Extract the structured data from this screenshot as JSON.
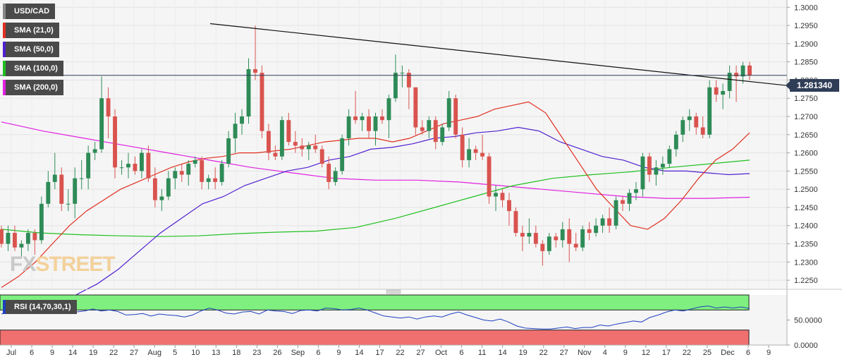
{
  "legend": [
    {
      "label": "USD/CAD",
      "color": "#888888"
    },
    {
      "label": "SMA (21,0)",
      "color": "#e03020"
    },
    {
      "label": "SMA (50,0)",
      "color": "#5020d0"
    },
    {
      "label": "SMA (100,0)",
      "color": "#20c020"
    },
    {
      "label": "SMA (200,0)",
      "color": "#e020e0"
    }
  ],
  "current_price": "1.281340",
  "watermark": {
    "fx": "FX",
    "street": "STREET"
  },
  "rsi_label": "RSI (14,70,30,1)",
  "chart_data": [
    {
      "type": "candlestick",
      "title": "USD/CAD",
      "ylim": [
        1.2225,
        1.302
      ],
      "yticks": [
        "1.3000",
        "1.2950",
        "1.2900",
        "1.2850",
        "1.2800",
        "1.2750",
        "1.2700",
        "1.2650",
        "1.2600",
        "1.2550",
        "1.2500",
        "1.2450",
        "1.2400",
        "1.2350",
        "1.2300",
        "1.2250"
      ],
      "xticks": [
        "Jul",
        "6",
        "9",
        "14",
        "19",
        "22",
        "27",
        "Aug",
        "5",
        "10",
        "13",
        "18",
        "23",
        "26",
        "Sep",
        "6",
        "9",
        "14",
        "17",
        "22",
        "27",
        "Oct",
        "6",
        "11",
        "14",
        "19",
        "22",
        "27",
        "Nov",
        "4",
        "9",
        "12",
        "17",
        "22",
        "25",
        "Dec",
        "6",
        "9"
      ],
      "up_color": "#2e8b57",
      "down_color": "#d9534f",
      "candles": [
        [
          1.239,
          1.24,
          1.234,
          1.235
        ],
        [
          1.235,
          1.24,
          1.233,
          1.238
        ],
        [
          1.238,
          1.24,
          1.233,
          1.234
        ],
        [
          1.234,
          1.236,
          1.231,
          1.235
        ],
        [
          1.235,
          1.239,
          1.233,
          1.238
        ],
        [
          1.238,
          1.239,
          1.232,
          1.236
        ],
        [
          1.236,
          1.248,
          1.235,
          1.246
        ],
        [
          1.246,
          1.255,
          1.245,
          1.252
        ],
        [
          1.252,
          1.26,
          1.25,
          1.254
        ],
        [
          1.254,
          1.256,
          1.244,
          1.246
        ],
        [
          1.246,
          1.25,
          1.244,
          1.246
        ],
        [
          1.246,
          1.256,
          1.242,
          1.253
        ],
        [
          1.253,
          1.258,
          1.25,
          1.253
        ],
        [
          1.253,
          1.262,
          1.25,
          1.26
        ],
        [
          1.26,
          1.263,
          1.258,
          1.261
        ],
        [
          1.261,
          1.281,
          1.26,
          1.275
        ],
        [
          1.275,
          1.278,
          1.264,
          1.27
        ],
        [
          1.27,
          1.272,
          1.253,
          1.256
        ],
        [
          1.256,
          1.258,
          1.254,
          1.256
        ],
        [
          1.256,
          1.26,
          1.253,
          1.257
        ],
        [
          1.257,
          1.259,
          1.254,
          1.255
        ],
        [
          1.255,
          1.261,
          1.253,
          1.26
        ],
        [
          1.26,
          1.262,
          1.252,
          1.253
        ],
        [
          1.253,
          1.256,
          1.245,
          1.247
        ],
        [
          1.247,
          1.25,
          1.244,
          1.248
        ],
        [
          1.248,
          1.255,
          1.247,
          1.253
        ],
        [
          1.253,
          1.256,
          1.25,
          1.255
        ],
        [
          1.255,
          1.257,
          1.252,
          1.254
        ],
        [
          1.254,
          1.258,
          1.251,
          1.257
        ],
        [
          1.257,
          1.259,
          1.256,
          1.258
        ],
        [
          1.258,
          1.259,
          1.25,
          1.252
        ],
        [
          1.252,
          1.254,
          1.25,
          1.253
        ],
        [
          1.253,
          1.256,
          1.25,
          1.252
        ],
        [
          1.252,
          1.258,
          1.251,
          1.257
        ],
        [
          1.257,
          1.266,
          1.256,
          1.264
        ],
        [
          1.264,
          1.271,
          1.26,
          1.268
        ],
        [
          1.268,
          1.272,
          1.265,
          1.27
        ],
        [
          1.27,
          1.286,
          1.268,
          1.283
        ],
        [
          1.283,
          1.295,
          1.28,
          1.282
        ],
        [
          1.282,
          1.284,
          1.264,
          1.266
        ],
        [
          1.266,
          1.268,
          1.258,
          1.26
        ],
        [
          1.26,
          1.262,
          1.258,
          1.259
        ],
        [
          1.259,
          1.27,
          1.258,
          1.269
        ],
        [
          1.269,
          1.271,
          1.262,
          1.263
        ],
        [
          1.263,
          1.266,
          1.26,
          1.262
        ],
        [
          1.262,
          1.264,
          1.259,
          1.261
        ],
        [
          1.261,
          1.263,
          1.258,
          1.262
        ],
        [
          1.262,
          1.265,
          1.26,
          1.261
        ],
        [
          1.261,
          1.262,
          1.256,
          1.257
        ],
        [
          1.257,
          1.259,
          1.25,
          1.252
        ],
        [
          1.252,
          1.256,
          1.251,
          1.255
        ],
        [
          1.255,
          1.265,
          1.254,
          1.264
        ],
        [
          1.264,
          1.272,
          1.262,
          1.27
        ],
        [
          1.27,
          1.277,
          1.268,
          1.269
        ],
        [
          1.269,
          1.271,
          1.266,
          1.27
        ],
        [
          1.27,
          1.272,
          1.264,
          1.266
        ],
        [
          1.266,
          1.271,
          1.262,
          1.27
        ],
        [
          1.27,
          1.272,
          1.268,
          1.269
        ],
        [
          1.269,
          1.276,
          1.264,
          1.275
        ],
        [
          1.275,
          1.287,
          1.274,
          1.282
        ],
        [
          1.282,
          1.284,
          1.278,
          1.282
        ],
        [
          1.282,
          1.283,
          1.272,
          1.278
        ],
        [
          1.278,
          1.278,
          1.265,
          1.267
        ],
        [
          1.267,
          1.269,
          1.265,
          1.266
        ],
        [
          1.266,
          1.27,
          1.264,
          1.269
        ],
        [
          1.269,
          1.27,
          1.261,
          1.263
        ],
        [
          1.263,
          1.268,
          1.262,
          1.267
        ],
        [
          1.267,
          1.277,
          1.266,
          1.275
        ],
        [
          1.275,
          1.276,
          1.264,
          1.265
        ],
        [
          1.265,
          1.267,
          1.256,
          1.258
        ],
        [
          1.258,
          1.264,
          1.256,
          1.261
        ],
        [
          1.261,
          1.262,
          1.258,
          1.26
        ],
        [
          1.26,
          1.265,
          1.258,
          1.259
        ],
        [
          1.259,
          1.26,
          1.246,
          1.248
        ],
        [
          1.248,
          1.251,
          1.244,
          1.249
        ],
        [
          1.249,
          1.25,
          1.245,
          1.247
        ],
        [
          1.247,
          1.249,
          1.24,
          1.244
        ],
        [
          1.244,
          1.245,
          1.237,
          1.238
        ],
        [
          1.238,
          1.24,
          1.233,
          1.237
        ],
        [
          1.237,
          1.242,
          1.235,
          1.238
        ],
        [
          1.238,
          1.24,
          1.234,
          1.235
        ],
        [
          1.235,
          1.236,
          1.229,
          1.233
        ],
        [
          1.233,
          1.238,
          1.232,
          1.237
        ],
        [
          1.237,
          1.238,
          1.234,
          1.236
        ],
        [
          1.236,
          1.241,
          1.234,
          1.239
        ],
        [
          1.239,
          1.242,
          1.23,
          1.235
        ],
        [
          1.235,
          1.238,
          1.233,
          1.234
        ],
        [
          1.234,
          1.24,
          1.233,
          1.239
        ],
        [
          1.239,
          1.241,
          1.236,
          1.238
        ],
        [
          1.238,
          1.242,
          1.237,
          1.24
        ],
        [
          1.24,
          1.243,
          1.238,
          1.242
        ],
        [
          1.242,
          1.245,
          1.238,
          1.24
        ],
        [
          1.24,
          1.248,
          1.239,
          1.247
        ],
        [
          1.247,
          1.248,
          1.244,
          1.246
        ],
        [
          1.246,
          1.25,
          1.244,
          1.249
        ],
        [
          1.249,
          1.252,
          1.247,
          1.25
        ],
        [
          1.25,
          1.26,
          1.248,
          1.259
        ],
        [
          1.259,
          1.26,
          1.252,
          1.254
        ],
        [
          1.254,
          1.258,
          1.251,
          1.256
        ],
        [
          1.256,
          1.259,
          1.254,
          1.257
        ],
        [
          1.257,
          1.262,
          1.256,
          1.261
        ],
        [
          1.261,
          1.266,
          1.259,
          1.265
        ],
        [
          1.265,
          1.27,
          1.263,
          1.269
        ],
        [
          1.269,
          1.272,
          1.266,
          1.27
        ],
        [
          1.27,
          1.271,
          1.265,
          1.267
        ],
        [
          1.267,
          1.27,
          1.264,
          1.265
        ],
        [
          1.265,
          1.28,
          1.264,
          1.278
        ],
        [
          1.278,
          1.28,
          1.274,
          1.276
        ],
        [
          1.276,
          1.279,
          1.272,
          1.277
        ],
        [
          1.277,
          1.284,
          1.275,
          1.282
        ],
        [
          1.282,
          1.284,
          1.274,
          1.281
        ],
        [
          1.281,
          1.285,
          1.279,
          1.284
        ],
        [
          1.284,
          1.285,
          1.28,
          1.2813
        ]
      ],
      "sma_21": [
        1.223,
        1.226,
        1.23,
        1.235,
        1.24,
        1.244,
        1.247,
        1.25,
        1.252,
        1.254,
        1.256,
        1.2575,
        1.2585,
        1.259,
        1.26,
        1.26,
        1.2605,
        1.261,
        1.262,
        1.263,
        1.2635,
        1.264,
        1.264,
        1.263,
        1.264,
        1.266,
        1.268,
        1.269,
        1.27,
        1.272,
        1.273,
        1.274,
        1.271,
        1.264,
        1.257,
        1.25,
        1.245,
        1.24,
        1.239,
        1.242,
        1.247,
        1.253,
        1.258,
        1.261,
        1.2655
      ],
      "sma_50": [
        1.221,
        1.224,
        1.228,
        1.233,
        1.238,
        1.242,
        1.246,
        1.248,
        1.251,
        1.253,
        1.255,
        1.256,
        1.258,
        1.259,
        1.261,
        1.2615,
        1.2625,
        1.264,
        1.2645,
        1.2655,
        1.266,
        1.267,
        1.266,
        1.263,
        1.261,
        1.259,
        1.258,
        1.256,
        1.255,
        1.255,
        1.2545,
        1.254,
        1.2543
      ],
      "sma_100": [
        1.239,
        1.238,
        1.2375,
        1.2372,
        1.237,
        1.2372,
        1.2378,
        1.2382,
        1.2385,
        1.2395,
        1.242,
        1.245,
        1.248,
        1.251,
        1.253,
        1.254,
        1.2548,
        1.256,
        1.257,
        1.258
      ],
      "sma_200": [
        1.2685,
        1.266,
        1.264,
        1.262,
        1.26,
        1.258,
        1.256,
        1.2545,
        1.253,
        1.2525,
        1.2525,
        1.252,
        1.251,
        1.25,
        1.249,
        1.248,
        1.2475,
        1.2475,
        1.2478
      ],
      "trendline": {
        "start": 1.2955,
        "end": 1.2785
      }
    },
    {
      "type": "line",
      "title": "RSI (14,70,30,1)",
      "ylim": [
        0,
        100
      ],
      "yticks": [
        "50.0000",
        "0.0000"
      ],
      "overbought": 70,
      "oversold": 30,
      "line_color": "#1f3fbf",
      "values": [
        62,
        68,
        72,
        70,
        66,
        63,
        72,
        74,
        73,
        66,
        68,
        72,
        68,
        70,
        67,
        60,
        61,
        63,
        58,
        62,
        60,
        59,
        56,
        60,
        68,
        74,
        70,
        64,
        62,
        66,
        67,
        62,
        70,
        68,
        67,
        63,
        69,
        70,
        68,
        74,
        73,
        70,
        71,
        74,
        70,
        64,
        58,
        56,
        54,
        56,
        52,
        56,
        58,
        56,
        62,
        66,
        60,
        55,
        50,
        48,
        52,
        46,
        38,
        34,
        33,
        32,
        32,
        34,
        36,
        33,
        35,
        35,
        40,
        38,
        42,
        45,
        48,
        46,
        55,
        60,
        66,
        70,
        68,
        72,
        76,
        78,
        74,
        76,
        74,
        76,
        73
      ]
    }
  ]
}
